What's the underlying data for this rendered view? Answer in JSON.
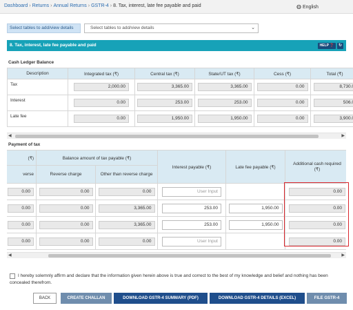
{
  "breadcrumb": {
    "items": [
      "Dashboard",
      "Returns",
      "Annual Returns",
      "GSTR-4"
    ],
    "current": "8. Tax, interest, late fee payable and paid",
    "separator": "›"
  },
  "language": {
    "label": "English"
  },
  "table_selector": {
    "label": "Select tables to add/view details",
    "placeholder": "Select tables to add/view details"
  },
  "section": {
    "title": "8. Tax, interest, late fee payable and paid",
    "help_label": "HELP"
  },
  "cash_ledger": {
    "title": "Cash Ledger Balance",
    "headers": [
      "Description",
      "Integrated tax (₹)",
      "Central tax (₹)",
      "State/UT tax (₹)",
      "Cess (₹)",
      "Total (₹)"
    ],
    "rows": [
      {
        "desc": "Tax",
        "values": [
          "2,000.00",
          "3,365.00",
          "3,365.00",
          "0.00",
          "8,730.0"
        ]
      },
      {
        "desc": "Interest",
        "values": [
          "0.00",
          "253.00",
          "253.00",
          "0.00",
          "506.0"
        ]
      },
      {
        "desc": "Late fee",
        "values": [
          "0.00",
          "1,950.00",
          "1,950.00",
          "0.00",
          "3,900.0"
        ]
      }
    ]
  },
  "payment": {
    "title": "Payment of tax",
    "headers": {
      "col0_top": "(₹)",
      "col0_bottom": "verse",
      "balance_group": "Balance amount of tax payable (₹)",
      "reverse_charge": "Reverse charge",
      "other_than_reverse": "Other than reverse charge",
      "interest_payable": "Interest payable (₹)",
      "late_fee_payable": "Late fee payable (₹)",
      "additional_cash": "Additional cash required (₹)"
    },
    "rows": [
      {
        "col0": "0.00",
        "reverse": "0.00",
        "other": "0.00",
        "interest": "User Input",
        "interest_placeholder": true,
        "late_fee": "",
        "additional": "0.00"
      },
      {
        "col0": "0.00",
        "reverse": "0.00",
        "other": "3,365.00",
        "interest": "253.00",
        "interest_placeholder": false,
        "late_fee": "1,950.00",
        "additional": "0.00"
      },
      {
        "col0": "0.00",
        "reverse": "0.00",
        "other": "3,365.00",
        "interest": "253.00",
        "interest_placeholder": false,
        "late_fee": "1,950.00",
        "additional": "0.00"
      },
      {
        "col0": "0.00",
        "reverse": "0.00",
        "other": "0.00",
        "interest": "User Input",
        "interest_placeholder": true,
        "late_fee": "",
        "additional": "0.00"
      }
    ]
  },
  "declaration": "I hereby solemnly affirm and declare that the information given herein above is true and correct to the best of my knowledge and belief and nothing has been concealed therefrom.",
  "buttons": {
    "back": "BACK",
    "create_challan": "CREATE CHALLAN",
    "download_summary": "DOWNLOAD GSTR-4 SUMMARY (PDF)",
    "download_details": "DOWNLOAD GSTR-4 DETAILS (EXCEL)",
    "file": "FILE GSTR-4"
  },
  "colors": {
    "section_header": "#17a2b8",
    "table_header": "#d9eaf3",
    "highlight_border": "#d9252c",
    "primary_button": "#1f4e8c",
    "secondary_button": "#6f8dad"
  }
}
